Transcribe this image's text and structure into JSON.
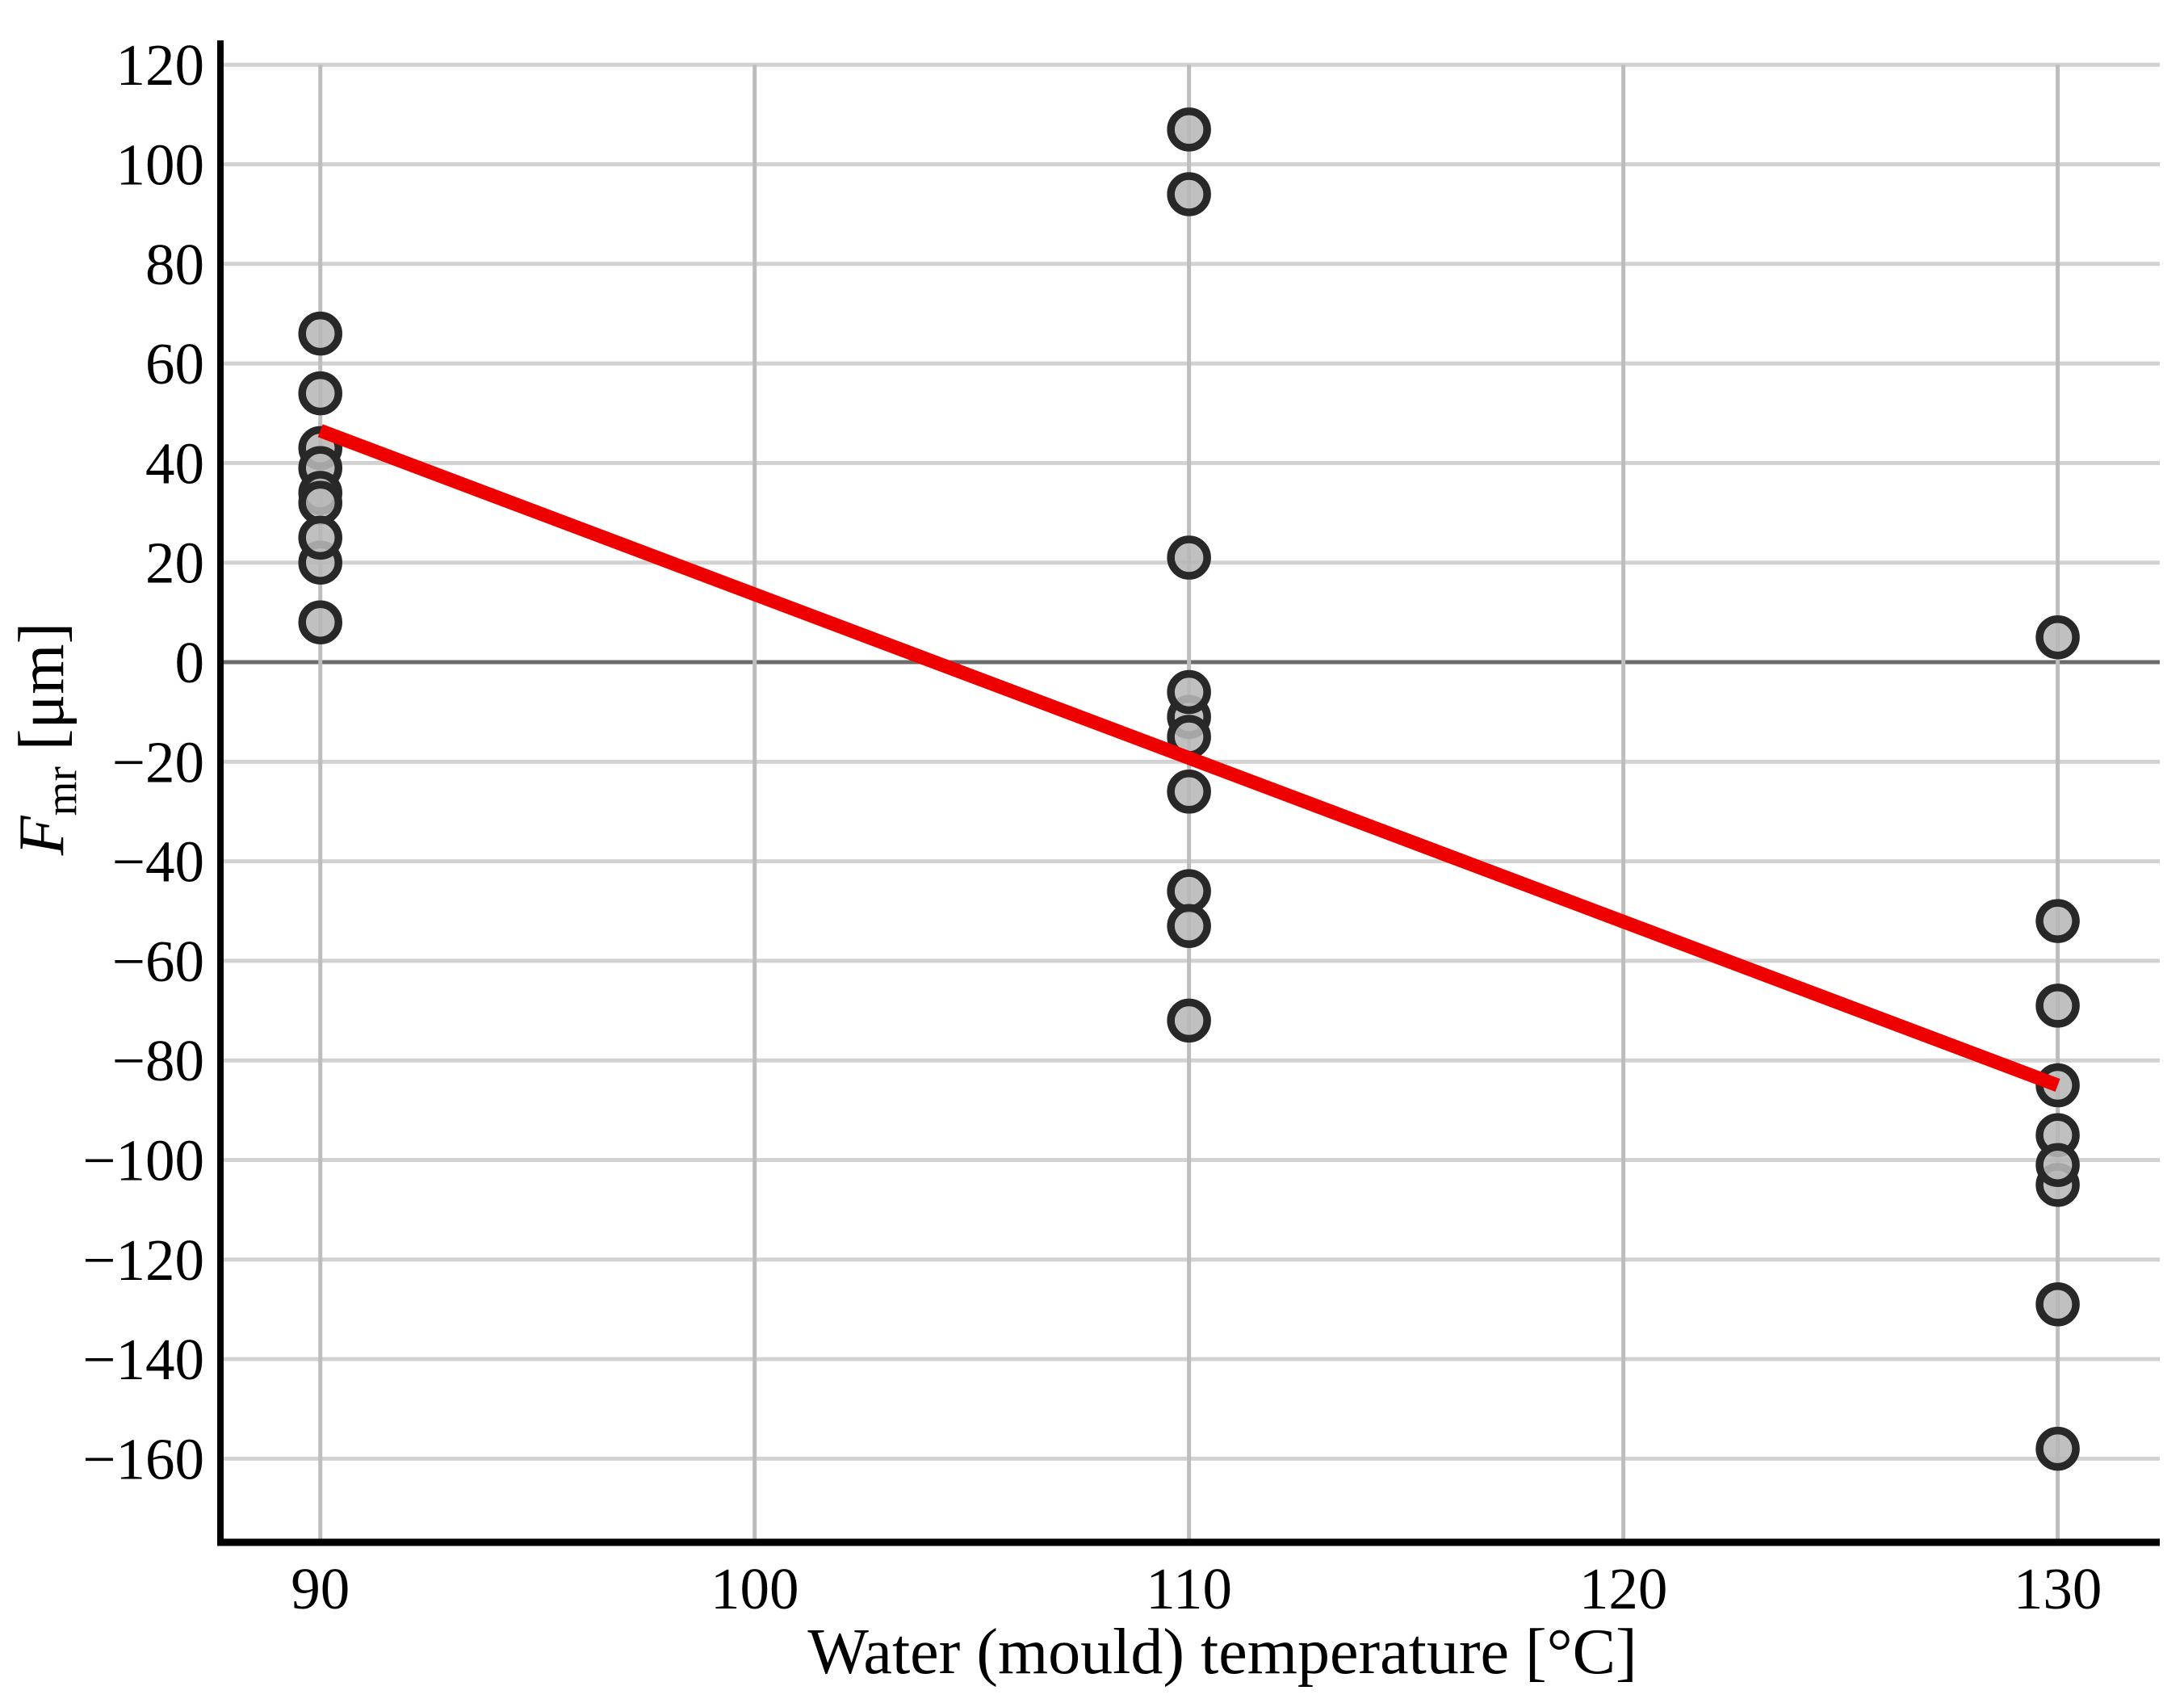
{
  "chart_data": {
    "type": "scatter",
    "title": "",
    "xlabel": "Water (mould) temperature [°C]",
    "ylabel": {
      "variable": "F",
      "subscript": "mr",
      "unit": " [μm]"
    },
    "xlim": [
      87.7,
      132.35
    ],
    "ylim": [
      -176.8,
      124.9
    ],
    "grid": "on",
    "legend": "none",
    "x_ticks": {
      "values": [
        90,
        100,
        110,
        120,
        130
      ],
      "labels": [
        "90",
        "100",
        "110",
        "120",
        "130"
      ]
    },
    "y_ticks": {
      "values": [
        120,
        100,
        80,
        60,
        40,
        20,
        0,
        -20,
        -40,
        -60,
        -80,
        -100,
        -120,
        -140,
        -160
      ],
      "labels": [
        "120",
        "100",
        "80",
        "60",
        "40",
        "20",
        "0",
        "−20",
        "−40",
        "−60",
        "−80",
        "−100",
        "−120",
        "−140",
        "−160"
      ]
    },
    "zero_line_y": 0,
    "vertical_grid_top_value": 120,
    "series": [
      {
        "name": "measurements",
        "type": "scatter",
        "points": [
          [
            90,
            66
          ],
          [
            90,
            54
          ],
          [
            90,
            43
          ],
          [
            90,
            39
          ],
          [
            90,
            34
          ],
          [
            90,
            32
          ],
          [
            90,
            20
          ],
          [
            90,
            25
          ],
          [
            90,
            8
          ],
          [
            110,
            107
          ],
          [
            110,
            94
          ],
          [
            110,
            21
          ],
          [
            110,
            -11
          ],
          [
            110,
            -6
          ],
          [
            110,
            -15
          ],
          [
            110,
            -26
          ],
          [
            110,
            -46
          ],
          [
            110,
            -53
          ],
          [
            110,
            -72
          ],
          [
            130,
            5
          ],
          [
            130,
            -52
          ],
          [
            130,
            -69
          ],
          [
            130,
            -85
          ],
          [
            130,
            -95
          ],
          [
            130,
            -105
          ],
          [
            130,
            -101
          ],
          [
            130,
            -129
          ],
          [
            130,
            -158
          ]
        ]
      },
      {
        "name": "linear-fit",
        "type": "line",
        "points": [
          [
            90,
            46.5
          ],
          [
            130,
            -85
          ]
        ]
      }
    ],
    "colors": {
      "marker_fill": "#b7b7b7",
      "marker_stroke": "#282828",
      "trend_line": "#ee0000",
      "grid_horizontal": "#d2d2d2",
      "grid_vertical": "#bdbdbd",
      "zero_line": "#6b6b6b",
      "spine": "#000000",
      "background": "#ffffff"
    }
  }
}
